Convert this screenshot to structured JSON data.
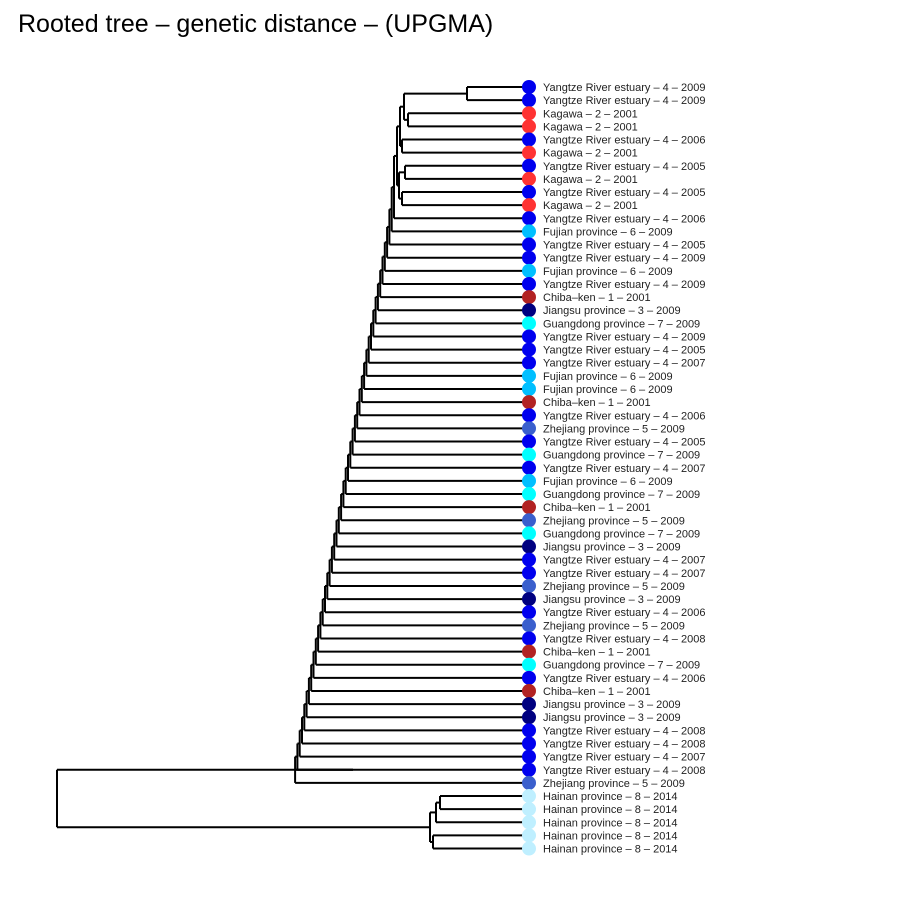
{
  "title": "Rooted tree – genetic distance – (UPGMA)",
  "legend_colors": {
    "Yangtze River estuary": "#0000ee",
    "Kagawa": "#ff3333",
    "Fujian province": "#00bfff",
    "Chiba–ken": "#b22222",
    "Jiangsu province": "#000080",
    "Guangdong province": "#00ffff",
    "Zhejiang province": "#3a5fcd",
    "Hainan province": "#bfefff"
  },
  "leaves": [
    {
      "label": "Yangtze River estuary – 4 – 2009",
      "group": "Yangtze River estuary"
    },
    {
      "label": "Yangtze River estuary – 4 – 2009",
      "group": "Yangtze River estuary"
    },
    {
      "label": "Kagawa – 2 – 2001",
      "group": "Kagawa"
    },
    {
      "label": "Kagawa – 2 – 2001",
      "group": "Kagawa"
    },
    {
      "label": "Yangtze River estuary – 4 – 2006",
      "group": "Yangtze River estuary"
    },
    {
      "label": "Kagawa – 2 – 2001",
      "group": "Kagawa"
    },
    {
      "label": "Yangtze River estuary – 4 – 2005",
      "group": "Yangtze River estuary"
    },
    {
      "label": "Kagawa – 2 – 2001",
      "group": "Kagawa"
    },
    {
      "label": "Yangtze River estuary – 4 – 2005",
      "group": "Yangtze River estuary"
    },
    {
      "label": "Kagawa – 2 – 2001",
      "group": "Kagawa"
    },
    {
      "label": "Yangtze River estuary – 4 – 2006",
      "group": "Yangtze River estuary"
    },
    {
      "label": "Fujian province – 6 – 2009",
      "group": "Fujian province"
    },
    {
      "label": "Yangtze River estuary – 4 – 2005",
      "group": "Yangtze River estuary"
    },
    {
      "label": "Yangtze River estuary – 4 – 2009",
      "group": "Yangtze River estuary"
    },
    {
      "label": "Fujian province – 6 – 2009",
      "group": "Fujian province"
    },
    {
      "label": "Yangtze River estuary – 4 – 2009",
      "group": "Yangtze River estuary"
    },
    {
      "label": "Chiba–ken – 1 – 2001",
      "group": "Chiba–ken"
    },
    {
      "label": "Jiangsu province – 3 – 2009",
      "group": "Jiangsu province"
    },
    {
      "label": "Guangdong province – 7 – 2009",
      "group": "Guangdong province"
    },
    {
      "label": "Yangtze River estuary – 4 – 2009",
      "group": "Yangtze River estuary"
    },
    {
      "label": "Yangtze River estuary – 4 – 2005",
      "group": "Yangtze River estuary"
    },
    {
      "label": "Yangtze River estuary – 4 – 2007",
      "group": "Yangtze River estuary"
    },
    {
      "label": "Fujian province – 6 – 2009",
      "group": "Fujian province"
    },
    {
      "label": "Fujian province – 6 – 2009",
      "group": "Fujian province"
    },
    {
      "label": "Chiba–ken – 1 – 2001",
      "group": "Chiba–ken"
    },
    {
      "label": "Yangtze River estuary – 4 – 2006",
      "group": "Yangtze River estuary"
    },
    {
      "label": "Zhejiang province – 5 – 2009",
      "group": "Zhejiang province"
    },
    {
      "label": "Yangtze River estuary – 4 – 2005",
      "group": "Yangtze River estuary"
    },
    {
      "label": "Guangdong province – 7 – 2009",
      "group": "Guangdong province"
    },
    {
      "label": "Yangtze River estuary – 4 – 2007",
      "group": "Yangtze River estuary"
    },
    {
      "label": "Fujian province – 6 – 2009",
      "group": "Fujian province"
    },
    {
      "label": "Guangdong province – 7 – 2009",
      "group": "Guangdong province"
    },
    {
      "label": "Chiba–ken – 1 – 2001",
      "group": "Chiba–ken"
    },
    {
      "label": "Zhejiang province – 5 – 2009",
      "group": "Zhejiang province"
    },
    {
      "label": "Guangdong province – 7 – 2009",
      "group": "Guangdong province"
    },
    {
      "label": "Jiangsu province – 3 – 2009",
      "group": "Jiangsu province"
    },
    {
      "label": "Yangtze River estuary – 4 – 2007",
      "group": "Yangtze River estuary"
    },
    {
      "label": "Yangtze River estuary – 4 – 2007",
      "group": "Yangtze River estuary"
    },
    {
      "label": "Zhejiang province – 5 – 2009",
      "group": "Zhejiang province"
    },
    {
      "label": "Jiangsu province – 3 – 2009",
      "group": "Jiangsu province"
    },
    {
      "label": "Yangtze River estuary – 4 – 2006",
      "group": "Yangtze River estuary"
    },
    {
      "label": "Zhejiang province – 5 – 2009",
      "group": "Zhejiang province"
    },
    {
      "label": "Yangtze River estuary – 4 – 2008",
      "group": "Yangtze River estuary"
    },
    {
      "label": "Chiba–ken – 1 – 2001",
      "group": "Chiba–ken"
    },
    {
      "label": "Guangdong province – 7 – 2009",
      "group": "Guangdong province"
    },
    {
      "label": "Yangtze River estuary – 4 – 2006",
      "group": "Yangtze River estuary"
    },
    {
      "label": "Chiba–ken – 1 – 2001",
      "group": "Chiba–ken"
    },
    {
      "label": "Jiangsu province – 3 – 2009",
      "group": "Jiangsu province"
    },
    {
      "label": "Jiangsu province – 3 – 2009",
      "group": "Jiangsu province"
    },
    {
      "label": "Yangtze River estuary – 4 – 2008",
      "group": "Yangtze River estuary"
    },
    {
      "label": "Yangtze River estuary – 4 – 2008",
      "group": "Yangtze River estuary"
    },
    {
      "label": "Yangtze River estuary – 4 – 2007",
      "group": "Yangtze River estuary"
    },
    {
      "label": "Yangtze River estuary – 4 – 2008",
      "group": "Yangtze River estuary"
    },
    {
      "label": "Zhejiang province – 5 – 2009",
      "group": "Zhejiang province"
    },
    {
      "label": "Hainan province – 8 – 2014",
      "group": "Hainan province"
    },
    {
      "label": "Hainan province – 8 – 2014",
      "group": "Hainan province"
    },
    {
      "label": "Hainan province – 8 – 2014",
      "group": "Hainan province"
    },
    {
      "label": "Hainan province – 8 – 2014",
      "group": "Hainan province"
    },
    {
      "label": "Hainan province – 8 – 2014",
      "group": "Hainan province"
    }
  ]
}
